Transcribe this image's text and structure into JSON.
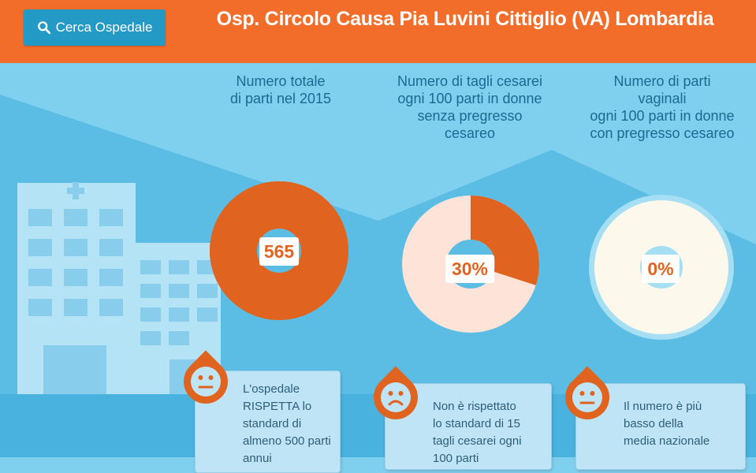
{
  "header": {
    "search_label": "Cerca Ospedale",
    "title": "Osp. Circolo Causa Pia Luvini Cittiglio (VA) Lombardia"
  },
  "colors": {
    "accent": "#f26d2a",
    "donut": "#e0641f",
    "donut_light": "#fde3d8",
    "button": "#2399c6",
    "sky": "#7fd0ee"
  },
  "metrics": [
    {
      "title_lines": [
        "Numero totale",
        "di parti nel 2015"
      ],
      "value": "565",
      "fraction": 1.0,
      "face": "neutral-face-icon",
      "note_lines": [
        "L'ospedale",
        "RISPETTA lo",
        "standard di",
        "almeno 500 parti",
        "annui"
      ]
    },
    {
      "title_lines": [
        "Numero di tagli cesarei",
        "ogni 100 parti in donne",
        "senza pregresso",
        "cesareo"
      ],
      "value": "30%",
      "fraction": 0.3,
      "face": "sad-face-icon",
      "note_lines": [
        "Non è rispettato",
        "lo standard di 15",
        "tagli cesarei ogni",
        "100 parti"
      ]
    },
    {
      "title_lines": [
        "Numero di parti",
        "vaginali",
        "ogni 100 parti in donne",
        "con pregresso cesareo"
      ],
      "value": "0%",
      "fraction": 0.0,
      "face": "neutral-face-icon",
      "note_lines": [
        "Il numero è più",
        "basso della",
        "media nazionale"
      ]
    }
  ]
}
